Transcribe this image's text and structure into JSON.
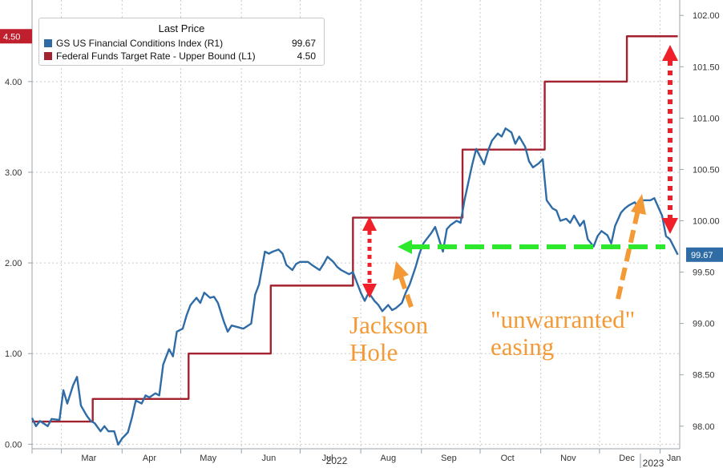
{
  "chart_data": {
    "type": "line",
    "legend": {
      "header": "Last Price",
      "placement": "top-left",
      "entries": [
        {
          "name": "GS US Financial Conditions Index  (R1)",
          "last": "99.67",
          "color": "#2f6ca6"
        },
        {
          "name": "Federal Funds Target Rate - Upper Bound  (L1)",
          "last": "4.50",
          "color": "#a3222f"
        }
      ]
    },
    "x_axis": {
      "range": [
        "2022-02-14",
        "2023-01-11"
      ],
      "ticks": [
        "Mar",
        "Apr",
        "May",
        "Jun",
        "Jul",
        "Aug",
        "Sep",
        "Oct",
        "Nov",
        "Dec",
        "Jan"
      ],
      "years": [
        "2022",
        "2023"
      ]
    },
    "left_axis": {
      "range": [
        -0.05,
        4.9
      ],
      "ticks": [
        "0.00",
        "1.00",
        "2.00",
        "3.00",
        "4.00"
      ],
      "last_tag": "4.50"
    },
    "right_axis": {
      "range": [
        97.78,
        102.15
      ],
      "ticks": [
        "98.00",
        "98.50",
        "99.00",
        "99.50",
        "100.00",
        "100.50",
        "101.00",
        "101.50",
        "102.00"
      ],
      "last_tag": "99.67"
    },
    "grid": true,
    "series": [
      {
        "name": "Federal Funds Target Rate - Upper Bound",
        "axis": "left",
        "step": true,
        "color": "#a3222f",
        "points": [
          [
            "2022-02-14",
            0.25
          ],
          [
            "2022-03-17",
            0.5
          ],
          [
            "2022-05-05",
            1.0
          ],
          [
            "2022-06-16",
            1.75
          ],
          [
            "2022-07-28",
            2.5
          ],
          [
            "2022-09-22",
            3.25
          ],
          [
            "2022-11-03",
            4.0
          ],
          [
            "2022-12-15",
            4.5
          ],
          [
            "2023-01-10",
            4.5
          ]
        ]
      },
      {
        "name": "GS US Financial Conditions Index",
        "axis": "right",
        "color": "#2f6ca6",
        "points": [
          [
            "2022-02-14",
            98.08
          ],
          [
            "2022-02-16",
            98.0
          ],
          [
            "2022-02-18",
            98.05
          ],
          [
            "2022-02-22",
            98.0
          ],
          [
            "2022-02-24",
            98.07
          ],
          [
            "2022-02-28",
            98.06
          ],
          [
            "2022-03-02",
            98.35
          ],
          [
            "2022-03-04",
            98.22
          ],
          [
            "2022-03-07",
            98.4
          ],
          [
            "2022-03-09",
            98.48
          ],
          [
            "2022-03-11",
            98.2
          ],
          [
            "2022-03-14",
            98.1
          ],
          [
            "2022-03-16",
            98.05
          ],
          [
            "2022-03-18",
            98.03
          ],
          [
            "2022-03-21",
            97.95
          ],
          [
            "2022-03-23",
            98.0
          ],
          [
            "2022-03-25",
            97.95
          ],
          [
            "2022-03-28",
            97.95
          ],
          [
            "2022-03-30",
            97.82
          ],
          [
            "2022-04-01",
            97.88
          ],
          [
            "2022-04-04",
            97.94
          ],
          [
            "2022-04-06",
            98.08
          ],
          [
            "2022-04-08",
            98.25
          ],
          [
            "2022-04-11",
            98.22
          ],
          [
            "2022-04-13",
            98.3
          ],
          [
            "2022-04-15",
            98.28
          ],
          [
            "2022-04-18",
            98.32
          ],
          [
            "2022-04-20",
            98.3
          ],
          [
            "2022-04-22",
            98.6
          ],
          [
            "2022-04-25",
            98.75
          ],
          [
            "2022-04-27",
            98.68
          ],
          [
            "2022-04-29",
            98.92
          ],
          [
            "2022-05-02",
            98.95
          ],
          [
            "2022-05-04",
            99.08
          ],
          [
            "2022-05-06",
            99.18
          ],
          [
            "2022-05-09",
            99.25
          ],
          [
            "2022-05-11",
            99.2
          ],
          [
            "2022-05-13",
            99.3
          ],
          [
            "2022-05-16",
            99.25
          ],
          [
            "2022-05-18",
            99.26
          ],
          [
            "2022-05-20",
            99.2
          ],
          [
            "2022-05-23",
            99.02
          ],
          [
            "2022-05-25",
            98.92
          ],
          [
            "2022-05-27",
            98.98
          ],
          [
            "2022-05-31",
            98.96
          ],
          [
            "2022-06-02",
            98.95
          ],
          [
            "2022-06-06",
            99.0
          ],
          [
            "2022-06-08",
            99.28
          ],
          [
            "2022-06-10",
            99.38
          ],
          [
            "2022-06-13",
            99.7
          ],
          [
            "2022-06-15",
            99.68
          ],
          [
            "2022-06-17",
            99.7
          ],
          [
            "2022-06-20",
            99.72
          ],
          [
            "2022-06-22",
            99.68
          ],
          [
            "2022-06-24",
            99.57
          ],
          [
            "2022-06-27",
            99.52
          ],
          [
            "2022-06-29",
            99.58
          ],
          [
            "2022-07-01",
            99.6
          ],
          [
            "2022-07-05",
            99.6
          ],
          [
            "2022-07-07",
            99.57
          ],
          [
            "2022-07-11",
            99.52
          ],
          [
            "2022-07-13",
            99.58
          ],
          [
            "2022-07-15",
            99.65
          ],
          [
            "2022-07-18",
            99.6
          ],
          [
            "2022-07-20",
            99.55
          ],
          [
            "2022-07-22",
            99.52
          ],
          [
            "2022-07-26",
            99.48
          ],
          [
            "2022-07-28",
            99.5
          ],
          [
            "2022-08-01",
            99.3
          ],
          [
            "2022-08-03",
            99.22
          ],
          [
            "2022-08-05",
            99.3
          ],
          [
            "2022-08-08",
            99.22
          ],
          [
            "2022-08-10",
            99.18
          ],
          [
            "2022-08-12",
            99.12
          ],
          [
            "2022-08-15",
            99.18
          ],
          [
            "2022-08-17",
            99.13
          ],
          [
            "2022-08-19",
            99.15
          ],
          [
            "2022-08-22",
            99.2
          ],
          [
            "2022-08-24",
            99.3
          ],
          [
            "2022-08-26",
            99.38
          ],
          [
            "2022-08-29",
            99.55
          ],
          [
            "2022-08-31",
            99.68
          ],
          [
            "2022-09-02",
            99.78
          ],
          [
            "2022-09-06",
            99.88
          ],
          [
            "2022-09-08",
            99.94
          ],
          [
            "2022-09-12",
            99.7
          ],
          [
            "2022-09-14",
            99.92
          ],
          [
            "2022-09-16",
            99.96
          ],
          [
            "2022-09-19",
            100.0
          ],
          [
            "2022-09-21",
            99.98
          ],
          [
            "2022-09-23",
            100.2
          ],
          [
            "2022-09-27",
            100.55
          ],
          [
            "2022-09-29",
            100.7
          ],
          [
            "2022-10-03",
            100.55
          ],
          [
            "2022-10-05",
            100.68
          ],
          [
            "2022-10-07",
            100.78
          ],
          [
            "2022-10-10",
            100.85
          ],
          [
            "2022-10-12",
            100.82
          ],
          [
            "2022-10-14",
            100.9
          ],
          [
            "2022-10-17",
            100.86
          ],
          [
            "2022-10-19",
            100.75
          ],
          [
            "2022-10-21",
            100.82
          ],
          [
            "2022-10-24",
            100.72
          ],
          [
            "2022-10-26",
            100.58
          ],
          [
            "2022-10-28",
            100.52
          ],
          [
            "2022-10-31",
            100.56
          ],
          [
            "2022-11-02",
            100.6
          ],
          [
            "2022-11-04",
            100.2
          ],
          [
            "2022-11-07",
            100.12
          ],
          [
            "2022-11-09",
            100.1
          ],
          [
            "2022-11-11",
            100.0
          ],
          [
            "2022-11-14",
            100.02
          ],
          [
            "2022-11-16",
            99.98
          ],
          [
            "2022-11-18",
            100.05
          ],
          [
            "2022-11-21",
            99.95
          ],
          [
            "2022-11-23",
            100.0
          ],
          [
            "2022-11-25",
            99.82
          ],
          [
            "2022-11-28",
            99.75
          ],
          [
            "2022-11-30",
            99.85
          ],
          [
            "2022-12-02",
            99.9
          ],
          [
            "2022-12-05",
            99.86
          ],
          [
            "2022-12-07",
            99.78
          ],
          [
            "2022-12-09",
            99.95
          ],
          [
            "2022-12-12",
            100.08
          ],
          [
            "2022-12-14",
            100.12
          ],
          [
            "2022-12-16",
            100.15
          ],
          [
            "2022-12-19",
            100.18
          ],
          [
            "2022-12-21",
            100.12
          ],
          [
            "2022-12-23",
            100.2
          ],
          [
            "2022-12-27",
            100.2
          ],
          [
            "2022-12-29",
            100.22
          ],
          [
            "2023-01-02",
            100.05
          ],
          [
            "2023-01-04",
            99.85
          ],
          [
            "2023-01-06",
            99.82
          ],
          [
            "2023-01-10",
            99.67
          ]
        ]
      }
    ],
    "annotations": [
      {
        "text": "Jackson\nHole",
        "color": "#f39a36"
      },
      {
        "text": "\"unwarranted\"\neasing",
        "color": "#f39a36"
      }
    ]
  }
}
